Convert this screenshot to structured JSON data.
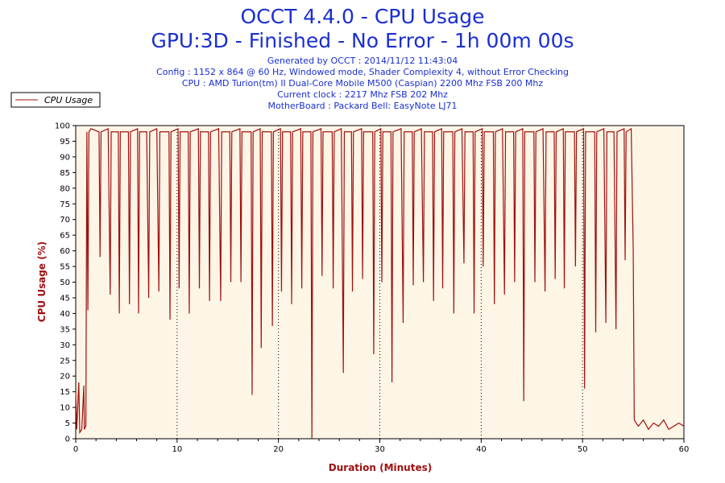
{
  "title": "OCCT 4.4.0 - CPU Usage",
  "subtitle": "GPU:3D - Finished - No Error - 1h 00m 00s",
  "info_lines": [
    "Generated by OCCT : 2014/11/12 11:43:04",
    "Config : 1152 x 864 @ 60 Hz, Windowed mode, Shader Complexity 4, without Error Checking",
    "CPU : AMD Turion(tm) II Dual-Core Mobile M500 (Caspian) 2200 Mhz FSB 200 Mhz",
    "Current clock : 2217 Mhz FSB 202 Mhz",
    "MotherBoard : Packard Bell: EasyNote LJ71"
  ],
  "colors": {
    "title": "#1a2fd0",
    "series": "#a01010",
    "plot_bg": "#fdf5e6",
    "axis_label": "#a01010"
  },
  "chart_data": {
    "type": "line",
    "title": "OCCT 4.4.0 - CPU Usage",
    "xlabel": "Duration (Minutes)",
    "ylabel": "CPU Usage (%)",
    "xlim": [
      0,
      60
    ],
    "ylim": [
      0,
      100
    ],
    "xticks": [
      "0",
      "10",
      "20",
      "30",
      "40",
      "50",
      "60"
    ],
    "yticks": [
      "0",
      "5",
      "10",
      "15",
      "20",
      "25",
      "30",
      "35",
      "40",
      "45",
      "50",
      "55",
      "60",
      "65",
      "70",
      "75",
      "80",
      "85",
      "90",
      "95",
      "100"
    ],
    "grid": "vertical dotted at x ticks",
    "legend": "top-left",
    "series": [
      {
        "name": "CPU Usage",
        "points": [
          [
            0,
            15
          ],
          [
            0.1,
            3
          ],
          [
            0.3,
            18
          ],
          [
            0.4,
            2
          ],
          [
            0.6,
            3
          ],
          [
            0.8,
            17
          ],
          [
            0.85,
            3
          ],
          [
            1.0,
            4
          ],
          [
            1.1,
            98
          ],
          [
            1.2,
            41
          ],
          [
            1.3,
            98
          ],
          [
            1.5,
            99
          ],
          [
            2.3,
            98
          ],
          [
            2.4,
            58
          ],
          [
            2.5,
            98
          ],
          [
            3.2,
            99
          ],
          [
            3.4,
            46
          ],
          [
            3.5,
            98
          ],
          [
            4.2,
            98
          ],
          [
            4.3,
            40
          ],
          [
            4.4,
            98
          ],
          [
            5.2,
            98
          ],
          [
            5.3,
            43
          ],
          [
            5.4,
            98
          ],
          [
            6.1,
            99
          ],
          [
            6.2,
            40
          ],
          [
            6.3,
            98
          ],
          [
            7.0,
            98
          ],
          [
            7.2,
            45
          ],
          [
            7.3,
            98
          ],
          [
            8.0,
            99
          ],
          [
            8.2,
            47
          ],
          [
            8.3,
            98
          ],
          [
            9.2,
            98
          ],
          [
            9.3,
            38
          ],
          [
            9.4,
            98
          ],
          [
            10.1,
            99
          ],
          [
            10.2,
            48
          ],
          [
            10.3,
            98
          ],
          [
            11.1,
            98
          ],
          [
            11.2,
            40
          ],
          [
            11.3,
            98
          ],
          [
            12.1,
            99
          ],
          [
            12.2,
            48
          ],
          [
            12.3,
            98
          ],
          [
            13.1,
            98
          ],
          [
            13.2,
            44
          ],
          [
            13.3,
            98
          ],
          [
            14.1,
            99
          ],
          [
            14.3,
            44
          ],
          [
            14.4,
            98
          ],
          [
            15.2,
            98
          ],
          [
            15.3,
            50
          ],
          [
            15.4,
            98
          ],
          [
            16.2,
            99
          ],
          [
            16.3,
            50
          ],
          [
            16.4,
            98
          ],
          [
            17.3,
            98
          ],
          [
            17.4,
            14
          ],
          [
            17.5,
            98
          ],
          [
            18.2,
            99
          ],
          [
            18.3,
            29
          ],
          [
            18.4,
            98
          ],
          [
            19.3,
            98
          ],
          [
            19.4,
            36
          ],
          [
            19.5,
            98
          ],
          [
            20.2,
            99
          ],
          [
            20.3,
            47
          ],
          [
            20.4,
            98
          ],
          [
            21.2,
            98
          ],
          [
            21.3,
            43
          ],
          [
            21.4,
            98
          ],
          [
            22.2,
            99
          ],
          [
            22.3,
            48
          ],
          [
            22.4,
            98
          ],
          [
            23.2,
            98
          ],
          [
            23.3,
            0
          ],
          [
            23.4,
            98
          ],
          [
            24.2,
            99
          ],
          [
            24.3,
            52
          ],
          [
            24.4,
            98
          ],
          [
            25.3,
            98
          ],
          [
            25.4,
            48
          ],
          [
            25.5,
            98
          ],
          [
            26.2,
            99
          ],
          [
            26.4,
            21
          ],
          [
            26.5,
            98
          ],
          [
            27.2,
            98
          ],
          [
            27.3,
            47
          ],
          [
            27.4,
            98
          ],
          [
            28.2,
            99
          ],
          [
            28.3,
            51
          ],
          [
            28.4,
            98
          ],
          [
            29.3,
            98
          ],
          [
            29.4,
            27
          ],
          [
            29.5,
            98
          ],
          [
            30.1,
            99
          ],
          [
            30.2,
            50
          ],
          [
            30.3,
            98
          ],
          [
            31.1,
            98
          ],
          [
            31.2,
            18
          ],
          [
            31.3,
            98
          ],
          [
            32.1,
            99
          ],
          [
            32.3,
            37
          ],
          [
            32.4,
            98
          ],
          [
            33.2,
            98
          ],
          [
            33.3,
            49
          ],
          [
            33.4,
            98
          ],
          [
            34.1,
            99
          ],
          [
            34.3,
            50
          ],
          [
            34.4,
            98
          ],
          [
            35.2,
            98
          ],
          [
            35.3,
            44
          ],
          [
            35.4,
            98
          ],
          [
            36.1,
            99
          ],
          [
            36.2,
            48
          ],
          [
            36.3,
            98
          ],
          [
            37.2,
            98
          ],
          [
            37.3,
            40
          ],
          [
            37.4,
            98
          ],
          [
            38.1,
            99
          ],
          [
            38.3,
            56
          ],
          [
            38.4,
            98
          ],
          [
            39.2,
            98
          ],
          [
            39.3,
            40
          ],
          [
            39.4,
            98
          ],
          [
            40.1,
            99
          ],
          [
            40.2,
            55
          ],
          [
            40.3,
            98
          ],
          [
            41.2,
            98
          ],
          [
            41.3,
            43
          ],
          [
            41.4,
            98
          ],
          [
            42.1,
            99
          ],
          [
            42.3,
            46
          ],
          [
            42.4,
            98
          ],
          [
            43.2,
            98
          ],
          [
            43.3,
            50
          ],
          [
            43.4,
            98
          ],
          [
            44.1,
            99
          ],
          [
            44.2,
            12
          ],
          [
            44.3,
            98
          ],
          [
            45.2,
            98
          ],
          [
            45.3,
            50
          ],
          [
            45.4,
            98
          ],
          [
            46.1,
            99
          ],
          [
            46.3,
            47
          ],
          [
            46.4,
            98
          ],
          [
            47.2,
            98
          ],
          [
            47.3,
            51
          ],
          [
            47.4,
            98
          ],
          [
            48.1,
            99
          ],
          [
            48.2,
            48
          ],
          [
            48.3,
            98
          ],
          [
            49.2,
            98
          ],
          [
            49.3,
            55
          ],
          [
            49.4,
            98
          ],
          [
            50.1,
            99
          ],
          [
            50.2,
            16
          ],
          [
            50.3,
            98
          ],
          [
            51.2,
            98
          ],
          [
            51.3,
            34
          ],
          [
            51.4,
            98
          ],
          [
            52.1,
            99
          ],
          [
            52.3,
            37
          ],
          [
            52.4,
            98
          ],
          [
            53.1,
            98
          ],
          [
            53.3,
            35
          ],
          [
            53.4,
            98
          ],
          [
            54.1,
            99
          ],
          [
            54.2,
            57
          ],
          [
            54.3,
            98
          ],
          [
            54.8,
            99
          ],
          [
            55.0,
            60
          ],
          [
            55.1,
            6
          ],
          [
            55.5,
            4
          ],
          [
            56,
            6
          ],
          [
            56.5,
            3
          ],
          [
            57,
            5
          ],
          [
            57.5,
            4
          ],
          [
            58,
            6
          ],
          [
            58.5,
            3
          ],
          [
            59,
            4
          ],
          [
            59.5,
            5
          ],
          [
            60,
            4
          ]
        ]
      }
    ]
  }
}
